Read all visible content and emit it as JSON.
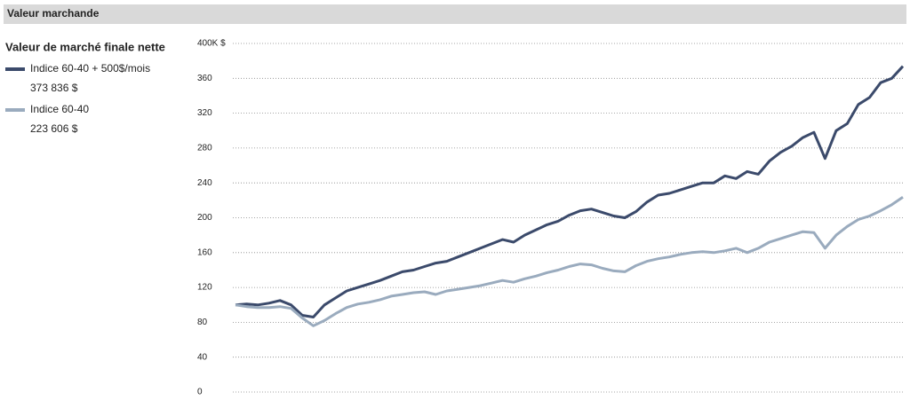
{
  "header": "Valeur marchande",
  "chart_data": {
    "type": "line",
    "legend_title": "Valeur de marché finale nette",
    "series": [
      {
        "name": "Indice 60-40 + 500$/mois",
        "final_label": "373 836 $",
        "color": "#3b4a6b",
        "values": [
          100,
          101,
          100,
          102,
          105,
          100,
          88,
          86,
          100,
          108,
          116,
          120,
          124,
          128,
          133,
          138,
          140,
          144,
          148,
          150,
          155,
          160,
          165,
          170,
          175,
          172,
          180,
          186,
          192,
          196,
          203,
          208,
          210,
          206,
          202,
          200,
          207,
          218,
          226,
          228,
          232,
          236,
          240,
          240,
          248,
          245,
          253,
          250,
          265,
          275,
          282,
          292,
          298,
          268,
          300,
          308,
          330,
          338,
          355,
          360,
          373.836
        ]
      },
      {
        "name": "Indice 60-40",
        "final_label": "223 606 $",
        "color": "#9aabbe",
        "values": [
          100,
          98,
          97,
          97,
          98,
          96,
          85,
          76,
          82,
          90,
          97,
          101,
          103,
          106,
          110,
          112,
          114,
          115,
          112,
          116,
          118,
          120,
          122,
          125,
          128,
          126,
          130,
          133,
          137,
          140,
          144,
          147,
          146,
          142,
          139,
          138,
          145,
          150,
          153,
          155,
          158,
          160,
          161,
          160,
          162,
          165,
          160,
          165,
          172,
          176,
          180,
          184,
          183,
          165,
          180,
          190,
          198,
          202,
          208,
          215,
          223.606
        ]
      }
    ],
    "ylim": [
      0,
      400
    ],
    "yticks": [
      0,
      40,
      80,
      120,
      160,
      200,
      240,
      280,
      320,
      360,
      {
        "value": 400,
        "label": "400K $"
      }
    ],
    "grid": true
  }
}
